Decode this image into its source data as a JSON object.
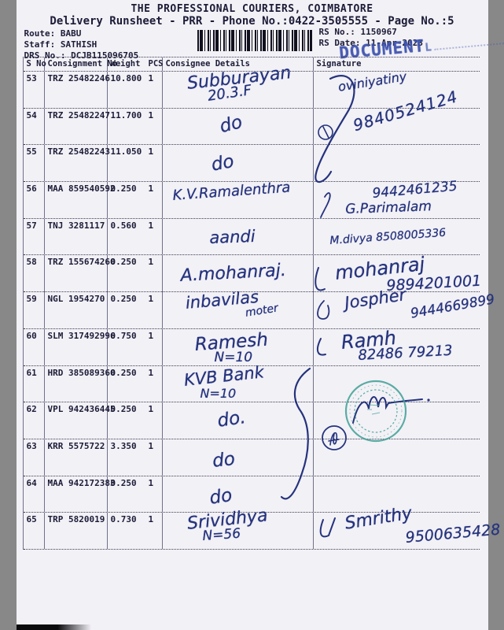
{
  "header": {
    "title": "THE PROFESSIONAL COURIERS, COIMBATORE",
    "subtitle": "Delivery Runsheet - PRR - Phone No.:0422-3505555 - Page No.:5",
    "route": "Route: BABU",
    "staff": "Staff: SATHISH",
    "drs": "DRS No.: DCJB115096705",
    "rs_no": "RS No.: 1150967",
    "rs_date": "RS Date: 11-Apr-2023",
    "stamp": "DOCUMENT",
    "stamp_tail": "L",
    "stamp_color": "#3b50ae",
    "round_stamp_color": "#3f9f96",
    "ink_color": "#25337d"
  },
  "table": {
    "columns": [
      "S No",
      "Consignment No",
      "Weight",
      "PCS",
      "Consignee Details",
      "Signature"
    ],
    "rows": [
      {
        "s_no": "53",
        "consignment": "TRZ 25482246",
        "weight": "10.800",
        "pcs": "1",
        "consignee": [
          "Subburayan",
          "20.3.F"
        ],
        "signature": []
      },
      {
        "s_no": "54",
        "consignment": "TRZ 25482247",
        "weight": "11.700",
        "pcs": "1",
        "consignee": [
          "do"
        ],
        "signature": []
      },
      {
        "s_no": "55",
        "consignment": "TRZ 25482243",
        "weight": "11.050",
        "pcs": "1",
        "consignee": [
          "do"
        ],
        "signature": []
      },
      {
        "s_no": "56",
        "consignment": "MAA 859540592",
        "weight": "0.250",
        "pcs": "1",
        "consignee": [
          "K.V.Ramalenthra"
        ],
        "signature": [
          "9442461235",
          "G.Parimalam"
        ]
      },
      {
        "s_no": "57",
        "consignment": "TNJ 3281117",
        "weight": "0.560",
        "pcs": "1",
        "consignee": [
          "aandi"
        ],
        "signature": [
          "M.divya  8508005336"
        ]
      },
      {
        "s_no": "58",
        "consignment": "TRZ 155674260",
        "weight": "0.250",
        "pcs": "1",
        "consignee": [
          "A.mohanraj.",
          ""
        ],
        "signature": [
          "mohanraj",
          "9894201001"
        ]
      },
      {
        "s_no": "59",
        "consignment": "NGL 1954270",
        "weight": "0.250",
        "pcs": "1",
        "consignee": [
          "inbavilas",
          "moter"
        ],
        "signature": [
          "Jospher",
          "9444669899"
        ]
      },
      {
        "s_no": "60",
        "consignment": "SLM 317492996",
        "weight": "0.750",
        "pcs": "1",
        "consignee": [
          "Ramesh",
          "N=10"
        ],
        "signature": [
          "Ramh",
          "82486 79213"
        ]
      },
      {
        "s_no": "61",
        "consignment": "HRD 385089360",
        "weight": "0.250",
        "pcs": "1",
        "consignee": [
          "KVB Bank",
          "N=10"
        ],
        "signature": []
      },
      {
        "s_no": "62",
        "consignment": "VPL 942436445",
        "weight": "0.250",
        "pcs": "1",
        "consignee": [
          "do."
        ],
        "signature": []
      },
      {
        "s_no": "63",
        "consignment": "KRR 5575722",
        "weight": "3.350",
        "pcs": "1",
        "consignee": [
          "do"
        ],
        "signature": []
      },
      {
        "s_no": "64",
        "consignment": "MAA 942172383",
        "weight": "0.250",
        "pcs": "1",
        "consignee": [
          "do"
        ],
        "signature": []
      },
      {
        "s_no": "65",
        "consignment": "TRP 5820019",
        "weight": "0.730",
        "pcs": "1",
        "consignee": [
          "Srividhya",
          "N=56"
        ],
        "signature": [
          "Smrithy",
          "9500635428"
        ]
      }
    ]
  },
  "overlays": {
    "sig_53_name": "oviniyatiny",
    "sig_53_phone": "9840524124"
  }
}
